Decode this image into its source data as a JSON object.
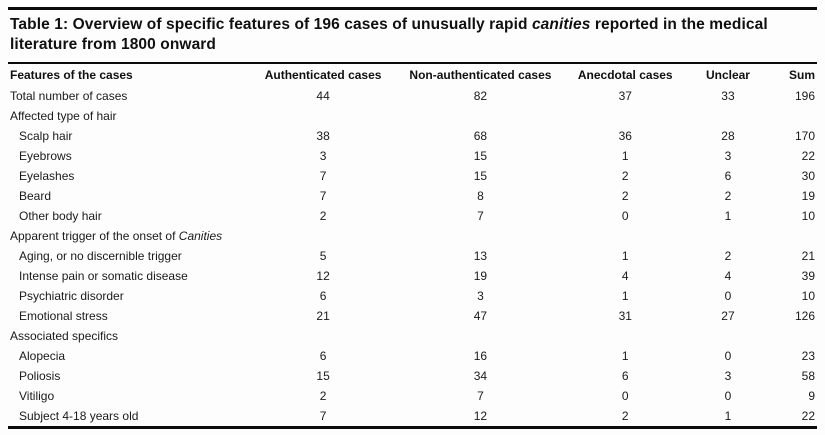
{
  "title": {
    "segments": [
      {
        "t": "Table 1: Overview of specific features of 196 cases of unusually rapid "
      },
      {
        "t": "canities",
        "i": true
      },
      {
        "t": " reported in the medical literature from 1800 onward"
      }
    ]
  },
  "table": {
    "columns": [
      "Features of the cases",
      "Authenticated cases",
      "Non-authenticated cases",
      "Anecdotal cases",
      "Unclear",
      "Sum"
    ],
    "rows": [
      {
        "type": "data",
        "indent": false,
        "label": [
          {
            "t": "Total number of cases"
          }
        ],
        "values": [
          "44",
          "82",
          "37",
          "33",
          "196"
        ]
      },
      {
        "type": "section",
        "indent": false,
        "label": [
          {
            "t": "Affected type of hair"
          }
        ],
        "values": []
      },
      {
        "type": "data",
        "indent": true,
        "label": [
          {
            "t": "Scalp hair"
          }
        ],
        "values": [
          "38",
          "68",
          "36",
          "28",
          "170"
        ]
      },
      {
        "type": "data",
        "indent": true,
        "label": [
          {
            "t": "Eyebrows"
          }
        ],
        "values": [
          "3",
          "15",
          "1",
          "3",
          "22"
        ]
      },
      {
        "type": "data",
        "indent": true,
        "label": [
          {
            "t": "Eyelashes"
          }
        ],
        "values": [
          "7",
          "15",
          "2",
          "6",
          "30"
        ]
      },
      {
        "type": "data",
        "indent": true,
        "label": [
          {
            "t": "Beard"
          }
        ],
        "values": [
          "7",
          "8",
          "2",
          "2",
          "19"
        ]
      },
      {
        "type": "data",
        "indent": true,
        "label": [
          {
            "t": "Other body hair"
          }
        ],
        "values": [
          "2",
          "7",
          "0",
          "1",
          "10"
        ]
      },
      {
        "type": "section",
        "indent": false,
        "label": [
          {
            "t": "Apparent trigger of the onset of "
          },
          {
            "t": "Canities",
            "i": true
          }
        ],
        "values": []
      },
      {
        "type": "data",
        "indent": true,
        "label": [
          {
            "t": "Aging, or no discernible trigger"
          }
        ],
        "values": [
          "5",
          "13",
          "1",
          "2",
          "21"
        ]
      },
      {
        "type": "data",
        "indent": true,
        "label": [
          {
            "t": "Intense pain or somatic disease"
          }
        ],
        "values": [
          "12",
          "19",
          "4",
          "4",
          "39"
        ]
      },
      {
        "type": "data",
        "indent": true,
        "label": [
          {
            "t": "Psychiatric disorder"
          }
        ],
        "values": [
          "6",
          "3",
          "1",
          "0",
          "10"
        ]
      },
      {
        "type": "data",
        "indent": true,
        "label": [
          {
            "t": "Emotional stress"
          }
        ],
        "values": [
          "21",
          "47",
          "31",
          "27",
          "126"
        ]
      },
      {
        "type": "section",
        "indent": false,
        "label": [
          {
            "t": "Associated specifics"
          }
        ],
        "values": []
      },
      {
        "type": "data",
        "indent": true,
        "label": [
          {
            "t": "Alopecia"
          }
        ],
        "values": [
          "6",
          "16",
          "1",
          "0",
          "23"
        ]
      },
      {
        "type": "data",
        "indent": true,
        "label": [
          {
            "t": "Poliosis"
          }
        ],
        "values": [
          "15",
          "34",
          "6",
          "3",
          "58"
        ]
      },
      {
        "type": "data",
        "indent": true,
        "label": [
          {
            "t": "Vitiligo"
          }
        ],
        "values": [
          "2",
          "7",
          "0",
          "0",
          "9"
        ]
      },
      {
        "type": "data",
        "indent": true,
        "label": [
          {
            "t": "Subject 4-18 years old"
          }
        ],
        "values": [
          "7",
          "12",
          "2",
          "1",
          "22"
        ]
      }
    ]
  },
  "colors": {
    "rule": "#0c0c0c",
    "text": "#141414",
    "background": "#fdfdfd"
  }
}
